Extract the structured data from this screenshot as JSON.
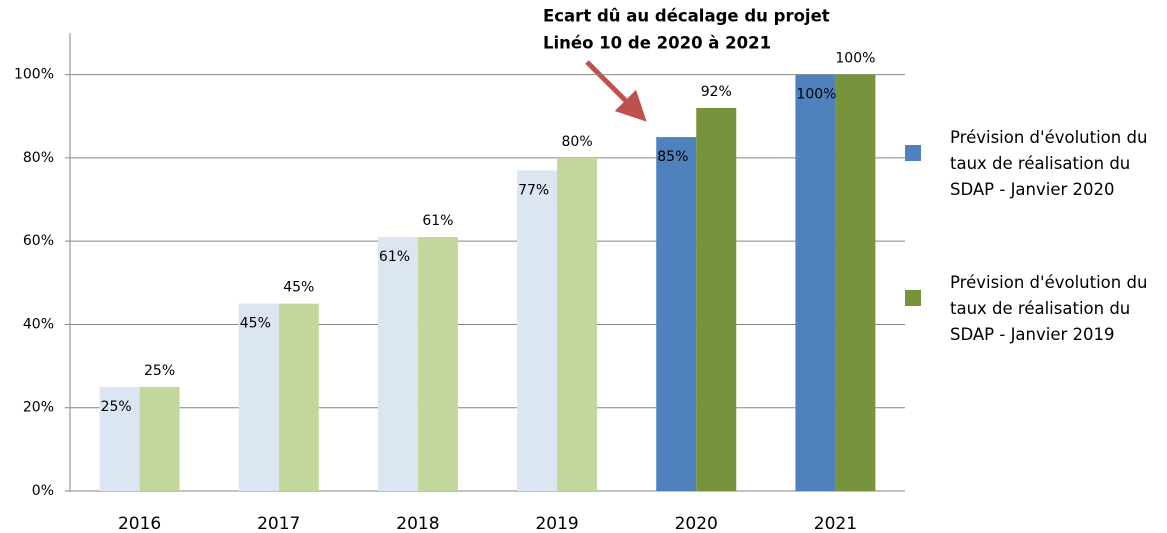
{
  "chart_data": {
    "type": "bar",
    "categories": [
      "2016",
      "2017",
      "2018",
      "2019",
      "2020",
      "2021"
    ],
    "series": [
      {
        "name": "Prévision d'évolution du taux de réalisation du SDAP - Janvier 2020",
        "color": "#4f81bd",
        "colors": [
          "#dce6f2",
          "#dce6f2",
          "#dce6f2",
          "#dce6f2",
          "#4f81bd",
          "#4f81bd"
        ],
        "values": [
          25,
          45,
          61,
          77,
          85,
          100
        ],
        "value_labels": [
          "25%",
          "45%",
          "61%",
          "77%",
          "85%",
          "100%"
        ]
      },
      {
        "name": "Prévision d'évolution du taux de réalisation du SDAP - Janvier 2019",
        "color": "#77933c",
        "colors": [
          "#c3d69b",
          "#c3d69b",
          "#c3d69b",
          "#c3d69b",
          "#77933c",
          "#77933c"
        ],
        "values": [
          25,
          45,
          61,
          80,
          92,
          100
        ],
        "value_labels": [
          "25%",
          "45%",
          "61%",
          "80%",
          "92%",
          "100%"
        ]
      }
    ],
    "ylim": [
      0,
      110
    ],
    "yticks": [
      {
        "value": 0,
        "label": "0%"
      },
      {
        "value": 20,
        "label": "20%"
      },
      {
        "value": 40,
        "label": "40%"
      },
      {
        "value": 60,
        "label": "60%"
      },
      {
        "value": 80,
        "label": "80%"
      },
      {
        "value": 100,
        "label": "100%"
      }
    ],
    "grid": true,
    "legend": "right",
    "annotation": {
      "lines": [
        "Ecart dû au décalage du projet",
        "Linéo 10 de 2020 à 2021"
      ],
      "color": "#e46c0a"
    }
  }
}
